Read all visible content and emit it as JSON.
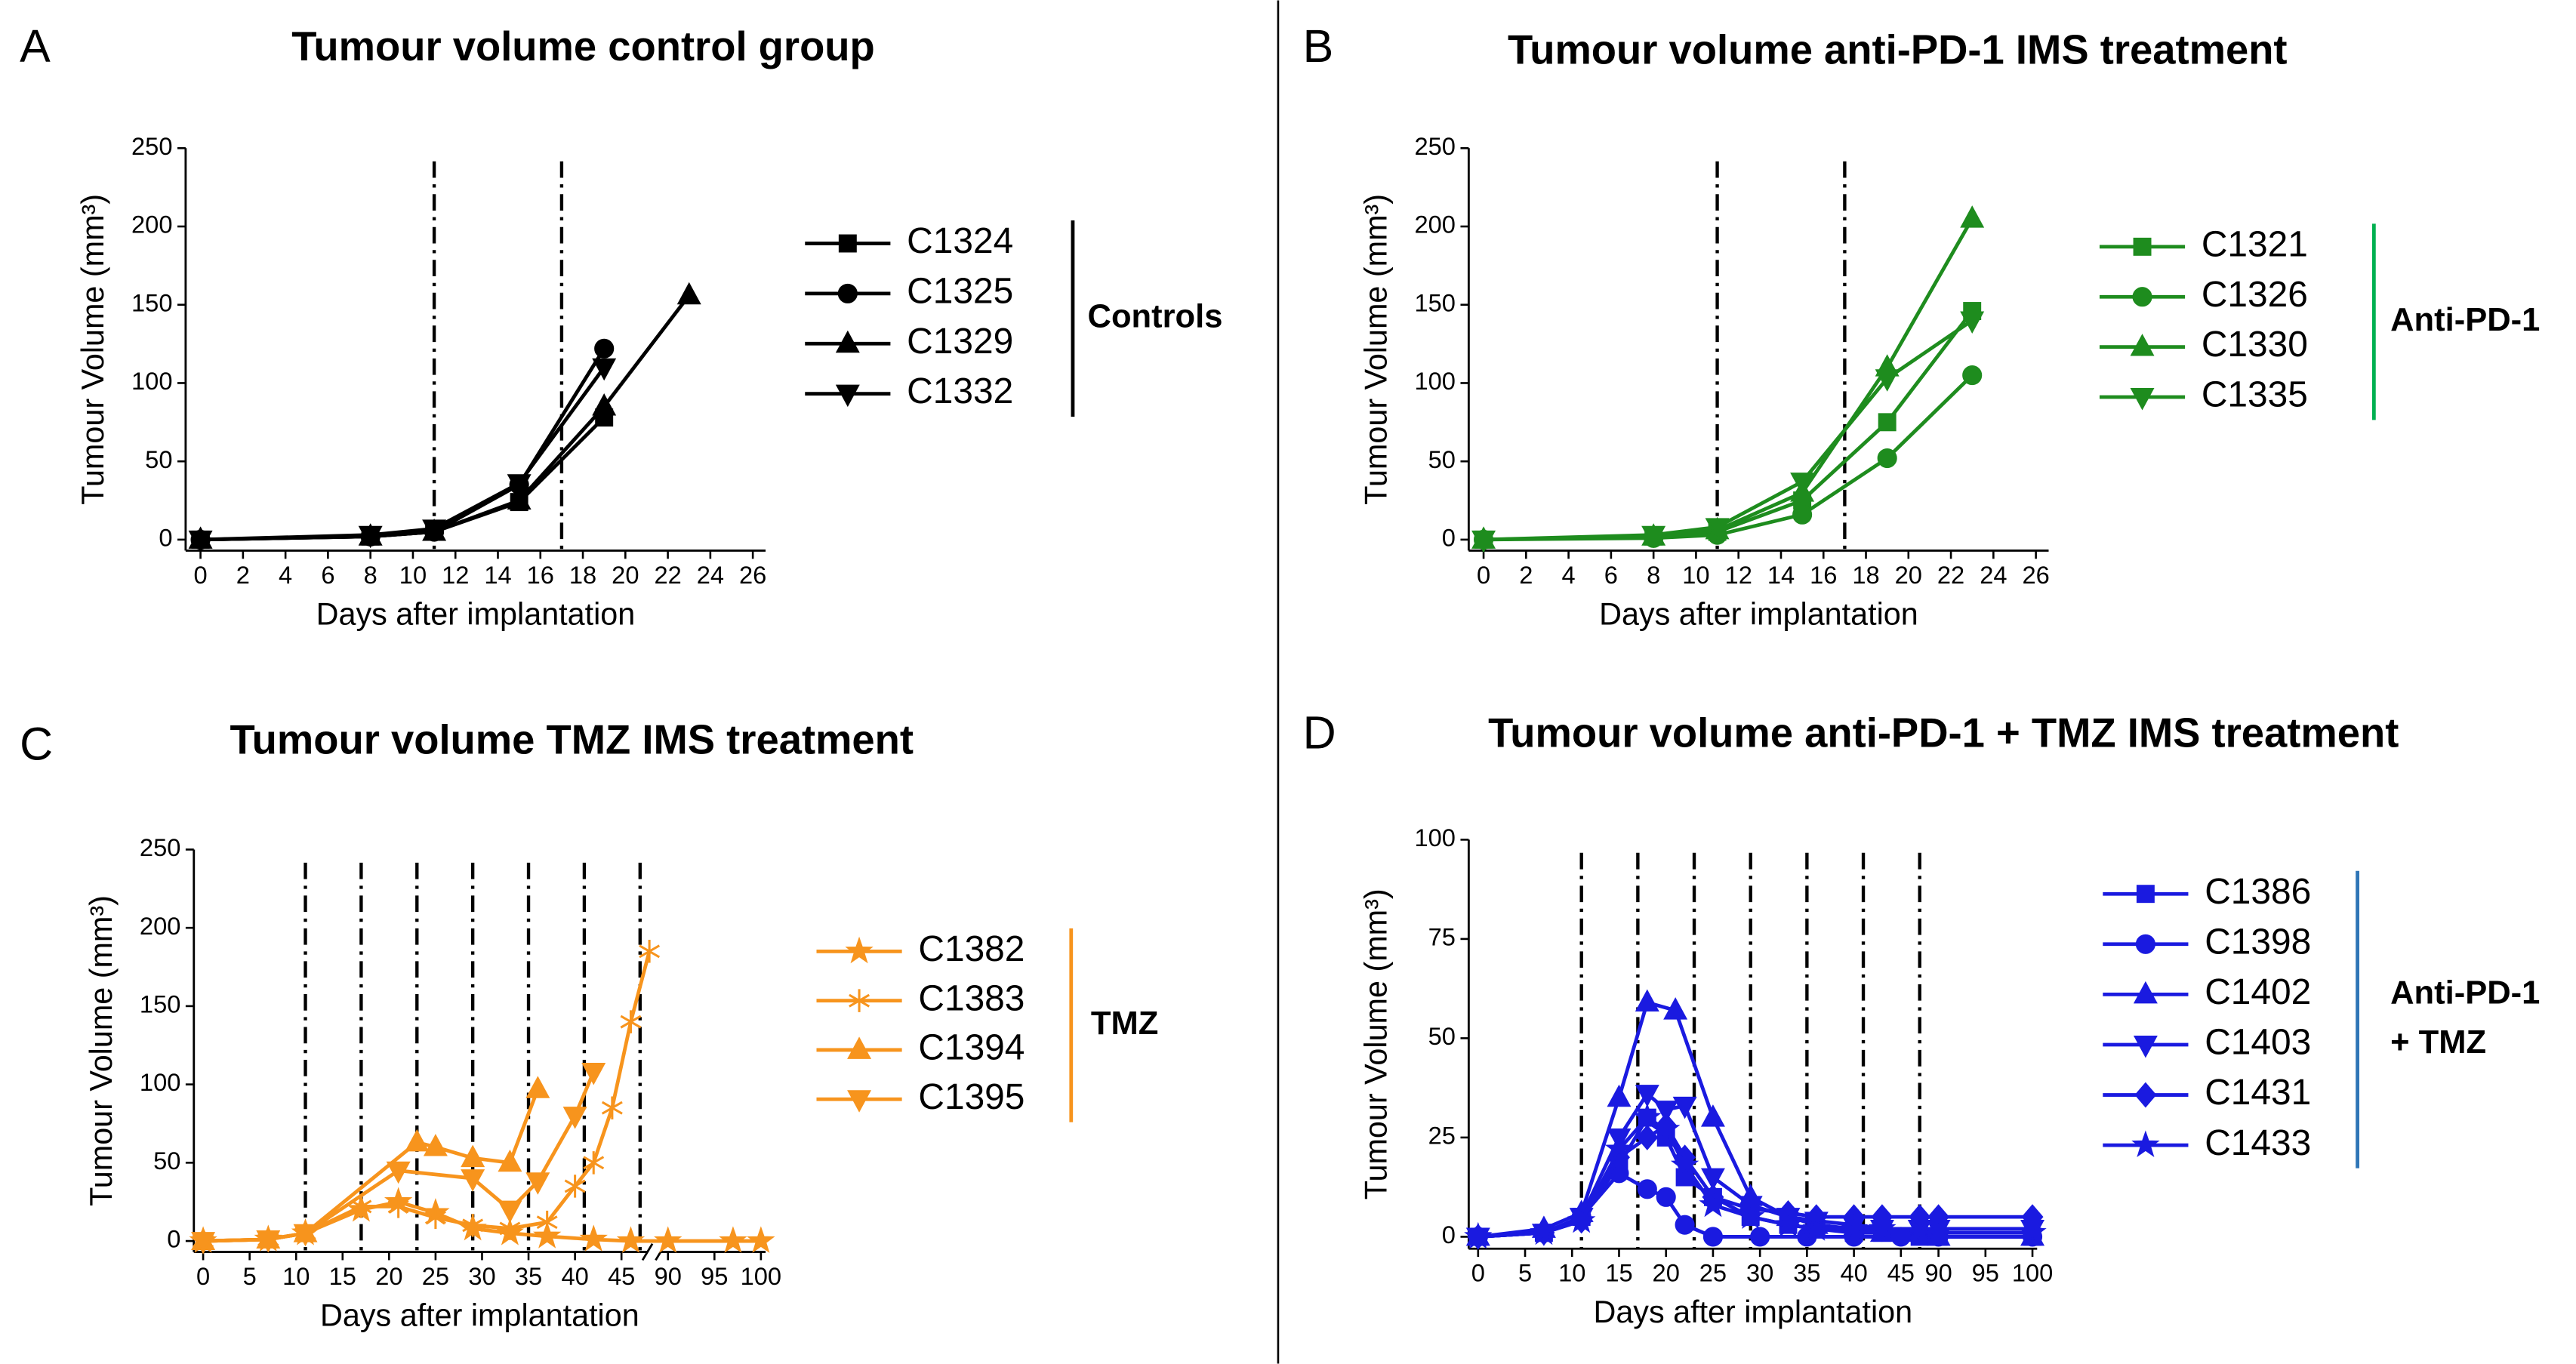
{
  "chart_data": [
    {
      "type": "line",
      "panel": "A",
      "title": "Tumour volume control group",
      "xlabel": "Days after implantation",
      "ylabel": "Tumour Volume (mm³)",
      "xlim": [
        -0.7,
        26.6
      ],
      "ylim": [
        -7,
        250
      ],
      "xticks": [
        0,
        2,
        4,
        6,
        8,
        10,
        12,
        14,
        16,
        18,
        20,
        22,
        24,
        26
      ],
      "yticks": [
        0,
        50,
        100,
        150,
        200,
        250
      ],
      "treatment_days": [
        11,
        17
      ],
      "group_label": [
        "Controls"
      ],
      "group_color": "#000000",
      "series": [
        {
          "name": "C1324",
          "color": "#000000",
          "marker": "square",
          "x": [
            0,
            8,
            11,
            15,
            19
          ],
          "values": [
            0,
            2,
            5,
            24,
            78
          ]
        },
        {
          "name": "C1325",
          "color": "#000000",
          "marker": "circle",
          "x": [
            0,
            8,
            11,
            15,
            19
          ],
          "values": [
            0,
            2,
            5,
            35,
            122
          ]
        },
        {
          "name": "C1329",
          "color": "#000000",
          "marker": "triangle",
          "x": [
            0,
            8,
            11,
            15,
            19,
            23
          ],
          "values": [
            0,
            2,
            5,
            25,
            85,
            156
          ]
        },
        {
          "name": "C1332",
          "color": "#000000",
          "marker": "triangle-down",
          "x": [
            0,
            8,
            11,
            15,
            19
          ],
          "values": [
            0,
            3,
            7,
            36,
            110
          ]
        }
      ]
    },
    {
      "type": "line",
      "panel": "B",
      "title": "Tumour volume anti-PD-1 IMS treatment",
      "xlabel": "Days after implantation",
      "ylabel": "Tumour Volume (mm³)",
      "xlim": [
        -0.7,
        26.6
      ],
      "ylim": [
        -7,
        250
      ],
      "xticks": [
        0,
        2,
        4,
        6,
        8,
        10,
        12,
        14,
        16,
        18,
        20,
        22,
        24,
        26
      ],
      "yticks": [
        0,
        50,
        100,
        150,
        200,
        250
      ],
      "treatment_days": [
        11,
        17
      ],
      "group_label": [
        "Anti-PD-1"
      ],
      "group_color": "#00b050",
      "series": [
        {
          "name": "C1321",
          "color": "#1e8c1e",
          "marker": "square",
          "x": [
            0,
            8,
            11,
            15,
            19,
            23
          ],
          "values": [
            0,
            2,
            5,
            25,
            75,
            146
          ]
        },
        {
          "name": "C1326",
          "color": "#1e8c1e",
          "marker": "circle",
          "x": [
            0,
            8,
            11,
            15,
            19,
            23
          ],
          "values": [
            0,
            1,
            3,
            16,
            52,
            105
          ]
        },
        {
          "name": "C1330",
          "color": "#1e8c1e",
          "marker": "triangle",
          "x": [
            0,
            8,
            11,
            15,
            19,
            23
          ],
          "values": [
            0,
            2,
            6,
            30,
            110,
            205
          ]
        },
        {
          "name": "C1335",
          "color": "#1e8c1e",
          "marker": "triangle-down",
          "x": [
            0,
            8,
            11,
            15,
            19,
            23
          ],
          "values": [
            0,
            3,
            8,
            37,
            103,
            140
          ]
        }
      ]
    },
    {
      "type": "line",
      "panel": "C",
      "title": "Tumour volume TMZ IMS treatment",
      "xlabel": "Days after implantation",
      "ylabel": "Tumour Volume (mm³)",
      "xlim": [
        -1,
        100.5
      ],
      "xbreak": [
        48,
        88
      ],
      "break_marker": true,
      "ylim": [
        -7,
        250
      ],
      "xticks": [
        0,
        5,
        10,
        15,
        20,
        25,
        30,
        35,
        40,
        45,
        90,
        95,
        100
      ],
      "yticks": [
        0,
        50,
        100,
        150,
        200,
        250
      ],
      "treatment_days": [
        11,
        17,
        23,
        29,
        35,
        41,
        47
      ],
      "group_label": [
        "TMZ"
      ],
      "group_color": "#f7941d",
      "series": [
        {
          "name": "C1382",
          "color": "#f7941d",
          "marker": "star",
          "x": [
            0,
            7,
            11,
            17,
            21,
            25,
            29,
            33,
            37,
            42,
            46,
            90,
            97,
            100
          ],
          "values": [
            0,
            1,
            5,
            20,
            25,
            18,
            8,
            5,
            3,
            1,
            0,
            0,
            0,
            0
          ]
        },
        {
          "name": "C1383",
          "color": "#f7941d",
          "marker": "asterisk",
          "x": [
            0,
            7,
            11,
            17,
            21,
            25,
            29,
            33,
            37,
            40,
            42,
            44,
            46,
            48
          ],
          "values": [
            0,
            1,
            5,
            22,
            22,
            15,
            10,
            8,
            12,
            35,
            50,
            85,
            140,
            185
          ]
        },
        {
          "name": "C1394",
          "color": "#f7941d",
          "marker": "triangle",
          "x": [
            0,
            7,
            11,
            23,
            25,
            29,
            33,
            36
          ],
          "values": [
            0,
            1,
            5,
            63,
            60,
            53,
            50,
            97
          ]
        },
        {
          "name": "C1395",
          "color": "#f7941d",
          "marker": "triangle-down",
          "x": [
            0,
            7,
            11,
            21,
            29,
            33,
            36,
            40,
            42
          ],
          "values": [
            0,
            1,
            5,
            45,
            40,
            20,
            38,
            80,
            108
          ]
        }
      ]
    },
    {
      "type": "line",
      "panel": "D",
      "title": "Tumour volume anti-PD-1 + TMZ IMS treatment",
      "xlabel": "Days after implantation",
      "ylabel": "Tumour Volume (mm³)",
      "xlim": [
        -1,
        100.5
      ],
      "xbreak": [
        47,
        88
      ],
      "ylim": [
        -3,
        100
      ],
      "xticks": [
        0,
        5,
        10,
        15,
        20,
        25,
        30,
        35,
        40,
        45,
        90,
        95,
        100
      ],
      "yticks": [
        0,
        25,
        50,
        75,
        100
      ],
      "treatment_days": [
        11,
        17,
        23,
        29,
        35,
        41,
        47
      ],
      "group_label": [
        "Anti-PD-1",
        "+ TMZ"
      ],
      "group_color": "#2e75b6",
      "series": [
        {
          "name": "C1386",
          "color": "#1a1ae0",
          "marker": "square",
          "x": [
            0,
            7,
            11,
            15,
            18,
            20,
            22,
            25,
            29,
            33,
            36,
            40,
            43,
            47,
            90,
            100
          ],
          "values": [
            0,
            1,
            5,
            18,
            30,
            25,
            15,
            10,
            5,
            3,
            2,
            1,
            1,
            0,
            0,
            0
          ]
        },
        {
          "name": "C1398",
          "color": "#1a1ae0",
          "marker": "circle",
          "x": [
            0,
            7,
            11,
            15,
            18,
            20,
            22,
            25,
            30,
            35,
            40,
            45,
            90,
            100
          ],
          "values": [
            0,
            1,
            5,
            16,
            12,
            10,
            3,
            0,
            0,
            0,
            0,
            0,
            0,
            0
          ]
        },
        {
          "name": "C1402",
          "color": "#1a1ae0",
          "marker": "triangle",
          "x": [
            0,
            7,
            11,
            15,
            18,
            21,
            25,
            29,
            33,
            36,
            40,
            43,
            47,
            90,
            100
          ],
          "values": [
            0,
            2,
            6,
            35,
            59,
            57,
            30,
            10,
            5,
            3,
            2,
            1,
            1,
            0,
            0
          ]
        },
        {
          "name": "C1403",
          "color": "#1a1ae0",
          "marker": "triangle-down",
          "x": [
            0,
            7,
            11,
            15,
            18,
            20,
            22,
            25,
            29,
            33,
            36,
            40,
            43,
            47,
            90,
            100
          ],
          "values": [
            0,
            1,
            5,
            25,
            36,
            32,
            33,
            15,
            8,
            5,
            4,
            3,
            2,
            2,
            2,
            2
          ]
        },
        {
          "name": "C1431",
          "color": "#1a1ae0",
          "marker": "diamond",
          "x": [
            0,
            7,
            11,
            15,
            18,
            20,
            22,
            25,
            29,
            33,
            36,
            40,
            43,
            47,
            90,
            100
          ],
          "values": [
            0,
            1,
            4,
            20,
            25,
            28,
            20,
            10,
            7,
            6,
            5,
            5,
            5,
            5,
            5,
            5
          ]
        },
        {
          "name": "C1433",
          "color": "#1a1ae0",
          "marker": "star",
          "x": [
            0,
            7,
            11,
            15,
            18,
            20,
            22,
            25,
            29,
            33,
            36,
            40,
            43,
            47,
            90,
            100
          ],
          "values": [
            0,
            1,
            4,
            22,
            30,
            27,
            18,
            8,
            5,
            3,
            2,
            2,
            2,
            1,
            1,
            1
          ]
        }
      ]
    }
  ]
}
